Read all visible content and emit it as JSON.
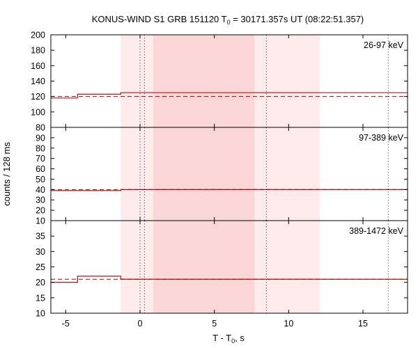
{
  "chart_data": {
    "type": "line",
    "title": "KONUS-WIND S1 GRB 151120 T",
    "title_sub": "0",
    "title_rest": " = 30171.357s UT (08:22:51.357)",
    "xlabel": "T - T",
    "xlabel_sub": "0",
    "xlabel_rest": ", s",
    "ylabel": "counts / 128 ms",
    "xlim": [
      -6.0,
      18.0
    ],
    "xticks": [
      -5,
      0,
      5,
      10,
      15
    ],
    "xtick_labels": [
      "-5",
      "0",
      "5",
      "10",
      "15"
    ],
    "line_color": "#a00000",
    "shading": [
      {
        "from": -1.3,
        "to": 12.1,
        "color": "#fdeaea"
      },
      {
        "from": 0.9,
        "to": 7.7,
        "color": "#fbd6d6"
      }
    ],
    "vertical_markers": [
      0.0,
      0.3,
      8.5,
      16.7
    ],
    "panels": [
      {
        "label": "26-97 keV",
        "ylim": [
          80,
          200
        ],
        "yticks": [
          100,
          120,
          140,
          160,
          180,
          200
        ],
        "ytick_labels": [
          "100",
          "120",
          "140",
          "160",
          "180",
          "200"
        ],
        "bottom_tick": "80",
        "background": 120,
        "coarse_steps": [
          {
            "start": -6.0,
            "end": -4.2,
            "value": 118
          },
          {
            "start": -4.2,
            "end": -1.3,
            "value": 123
          }
        ],
        "fine_start": -1.3,
        "bin": 0.128,
        "values": [
          125,
          125,
          125,
          125,
          125,
          125,
          125,
          125,
          125,
          125,
          125,
          125,
          125,
          125,
          125,
          125,
          125,
          125,
          125,
          125,
          125,
          125,
          125,
          125,
          125,
          125,
          125,
          125,
          125,
          125,
          125,
          125,
          125,
          125,
          125,
          125,
          125,
          125,
          125,
          125,
          125,
          125,
          125,
          125,
          125,
          125,
          125,
          125,
          125,
          125,
          125,
          125,
          125,
          125,
          125,
          125,
          125,
          125,
          125,
          125,
          125,
          125,
          125,
          125,
          125,
          125,
          125,
          125,
          125,
          125,
          125,
          125,
          125,
          125,
          125,
          125,
          125,
          125,
          125,
          125,
          125,
          125,
          125,
          125,
          125,
          125,
          125,
          125,
          125,
          125,
          125,
          125,
          125,
          125,
          125,
          125,
          125,
          125,
          125,
          125,
          125,
          125,
          125,
          125,
          125,
          125,
          125,
          125,
          125,
          125,
          125,
          125,
          125,
          125,
          125,
          125,
          125,
          125,
          125,
          125,
          125,
          125,
          125,
          125,
          125,
          125,
          125,
          125,
          125,
          125,
          125,
          125,
          125,
          125,
          125,
          125,
          125,
          125,
          125,
          125,
          125,
          125,
          125,
          125,
          125,
          125,
          125,
          125,
          125,
          125,
          125,
          125,
          125,
          125,
          125,
          125,
          125,
          125,
          125,
          125,
          125,
          125,
          125,
          125,
          125,
          125,
          125,
          125,
          125,
          125,
          125,
          125,
          125,
          125,
          125,
          125,
          125,
          125,
          125,
          125,
          125,
          125,
          125,
          125,
          125,
          125,
          125,
          125,
          125,
          125,
          125,
          125,
          125,
          125,
          125,
          125,
          125,
          125,
          125,
          125
        ]
      },
      {
        "label": "97-389 keV",
        "ylim": [
          10,
          100
        ],
        "yticks": [
          20,
          30,
          40,
          50,
          60,
          70,
          80,
          90
        ],
        "ytick_labels": [
          "20",
          "30",
          "40",
          "50",
          "60",
          "70",
          "80",
          "90"
        ],
        "bottom_tick": "10",
        "background": 40,
        "coarse_steps": [
          {
            "start": -6.0,
            "end": -4.2,
            "value": 39
          },
          {
            "start": -4.2,
            "end": -1.3,
            "value": 39
          }
        ],
        "fine_start": -1.3,
        "bin": 0.128,
        "values": [
          40,
          40,
          40,
          40,
          40,
          40,
          40,
          40,
          40,
          40,
          40,
          40,
          40,
          40,
          40,
          40,
          40,
          40,
          40,
          40,
          40,
          40,
          40,
          40,
          40,
          40,
          40,
          40,
          40,
          40,
          40,
          40,
          40,
          40,
          40,
          40,
          40,
          40,
          40,
          40,
          40,
          40,
          40,
          40,
          40,
          40,
          40,
          40,
          40,
          40,
          40,
          40,
          40,
          40,
          40,
          40,
          40,
          40,
          40,
          40,
          40,
          40,
          40,
          40,
          40,
          40,
          40,
          40,
          40,
          40,
          40,
          40,
          40,
          40,
          40,
          40,
          40,
          40,
          40,
          40,
          40,
          40,
          40,
          40,
          40,
          40,
          40,
          40,
          40,
          40,
          40,
          40,
          40,
          40,
          40,
          40,
          40,
          40,
          40,
          40,
          40,
          40,
          40,
          40,
          40,
          40,
          40,
          40,
          40,
          40,
          40,
          40,
          40,
          40,
          40,
          40,
          40,
          40,
          40,
          40,
          40,
          40,
          40,
          40,
          40,
          40,
          40,
          40,
          40,
          40,
          40,
          40,
          40,
          40,
          40,
          40,
          40,
          40,
          40,
          40,
          40,
          40,
          40,
          40,
          40,
          40,
          40,
          40,
          40,
          40,
          40,
          40,
          40,
          40,
          40,
          40,
          40,
          40,
          40,
          40,
          40,
          40,
          40,
          40,
          40,
          40,
          40,
          40,
          40,
          40,
          40,
          40,
          40,
          40,
          40,
          40,
          40,
          40,
          40,
          40,
          40,
          40,
          40,
          40,
          40,
          40,
          40,
          40,
          40,
          40,
          40,
          40,
          40,
          40,
          40,
          40,
          40,
          40,
          40,
          40
        ]
      },
      {
        "label": "389-1472 keV",
        "ylim": [
          10,
          40
        ],
        "yticks": [
          15,
          20,
          25,
          30,
          35
        ],
        "ytick_labels": [
          "15",
          "20",
          "25",
          "30",
          "35"
        ],
        "bottom_tick": "10",
        "background": 21,
        "coarse_steps": [
          {
            "start": -6.0,
            "end": -4.2,
            "value": 20
          },
          {
            "start": -4.2,
            "end": -1.3,
            "value": 22
          }
        ],
        "fine_start": -1.3,
        "bin": 0.128,
        "values": [
          21,
          21,
          21,
          21,
          21,
          21,
          21,
          21,
          21,
          21,
          21,
          21,
          21,
          21,
          21,
          21,
          21,
          21,
          21,
          21,
          21,
          21,
          21,
          21,
          21,
          21,
          21,
          21,
          21,
          21,
          21,
          21,
          21,
          21,
          21,
          21,
          21,
          21,
          21,
          21,
          21,
          21,
          21,
          21,
          21,
          21,
          21,
          21,
          21,
          21,
          21,
          21,
          21,
          21,
          21,
          21,
          21,
          21,
          21,
          21,
          21,
          21,
          21,
          21,
          21,
          21,
          21,
          21,
          21,
          21,
          21,
          21,
          21,
          21,
          21,
          21,
          21,
          21,
          21,
          21,
          21,
          21,
          21,
          21,
          21,
          21,
          21,
          21,
          21,
          21,
          21,
          21,
          21,
          21,
          21,
          21,
          21,
          21,
          21,
          21,
          21,
          21,
          21,
          21,
          21,
          21,
          21,
          21,
          21,
          21,
          21,
          21,
          21,
          21,
          21,
          21,
          21,
          21,
          21,
          21,
          21,
          21,
          21,
          21,
          21,
          21,
          21,
          21,
          21,
          21,
          21,
          21,
          21,
          21,
          21,
          21,
          21,
          21,
          21,
          21,
          21,
          21,
          21,
          21,
          21,
          21,
          21,
          21,
          21,
          21,
          21,
          21,
          21,
          21,
          21,
          21,
          21,
          21,
          21,
          21,
          21,
          21,
          21,
          21,
          21,
          21,
          21,
          21,
          21,
          21,
          21,
          21,
          21,
          21,
          21,
          21,
          21,
          21,
          21,
          21,
          21,
          21,
          21,
          21,
          21,
          21,
          21,
          21,
          21,
          21,
          21,
          21,
          21,
          21,
          21,
          21,
          21,
          21,
          21,
          21
        ]
      }
    ]
  }
}
